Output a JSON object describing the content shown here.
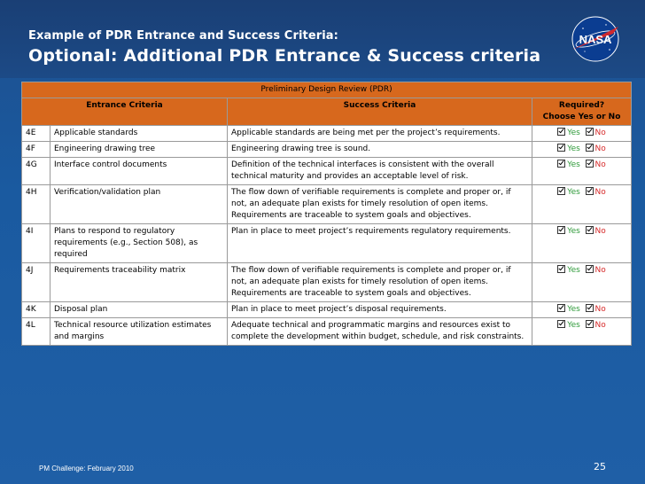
{
  "slide": {
    "subtitle": "Example of PDR Entrance and Success Criteria:",
    "title": "Optional:  Additional PDR Entrance & Success criteria",
    "logo_text": "NASA"
  },
  "table": {
    "caption": "Preliminary Design Review (PDR)",
    "col_entrance": "Entrance Criteria",
    "col_success": "Success Criteria",
    "col_required_1": "Required?",
    "col_required_2": "Choose Yes or No",
    "yes_label": "Yes",
    "no_label": "No",
    "rows": [
      {
        "id": "4E",
        "entrance": "Applicable standards",
        "success": "Applicable standards are being met per the project’s requirements."
      },
      {
        "id": "4F",
        "entrance": "Engineering drawing tree",
        "success": "Engineering drawing tree is sound."
      },
      {
        "id": "4G",
        "entrance": "Interface control documents",
        "success": "Definition of the technical interfaces is consistent with the overall technical maturity and provides an acceptable level of risk."
      },
      {
        "id": "4H",
        "entrance": "Verification/validation plan",
        "success": "The flow down of verifiable requirements is complete and proper or, if not, an adequate plan exists for timely resolution of open items.  Requirements are traceable to system goals and objectives."
      },
      {
        "id": "4I",
        "entrance": "Plans to respond to regulatory requirements (e.g., Section 508), as required",
        "success": "Plan in place to meet project’s requirements regulatory requirements."
      },
      {
        "id": "4J",
        "entrance": "Requirements traceability matrix",
        "success": "The flow down of verifiable requirements is complete and proper or, if not, an adequate plan exists for timely resolution of open items.  Requirements are traceable to system goals and objectives."
      },
      {
        "id": "4K",
        "entrance": "Disposal plan",
        "success": "Plan in place to meet project’s disposal requirements."
      },
      {
        "id": "4L",
        "entrance": "Technical resource utilization estimates and margins",
        "success": "Adequate technical and programmatic margins and resources exist to complete the development within budget, schedule, and risk constraints."
      }
    ]
  },
  "footer": {
    "event": "PM Challenge:  February 2010",
    "page_number": "25"
  },
  "colors": {
    "header_orange": "#d7681d",
    "yes_green": "#2f9a3a",
    "no_red": "#d62a2a"
  }
}
